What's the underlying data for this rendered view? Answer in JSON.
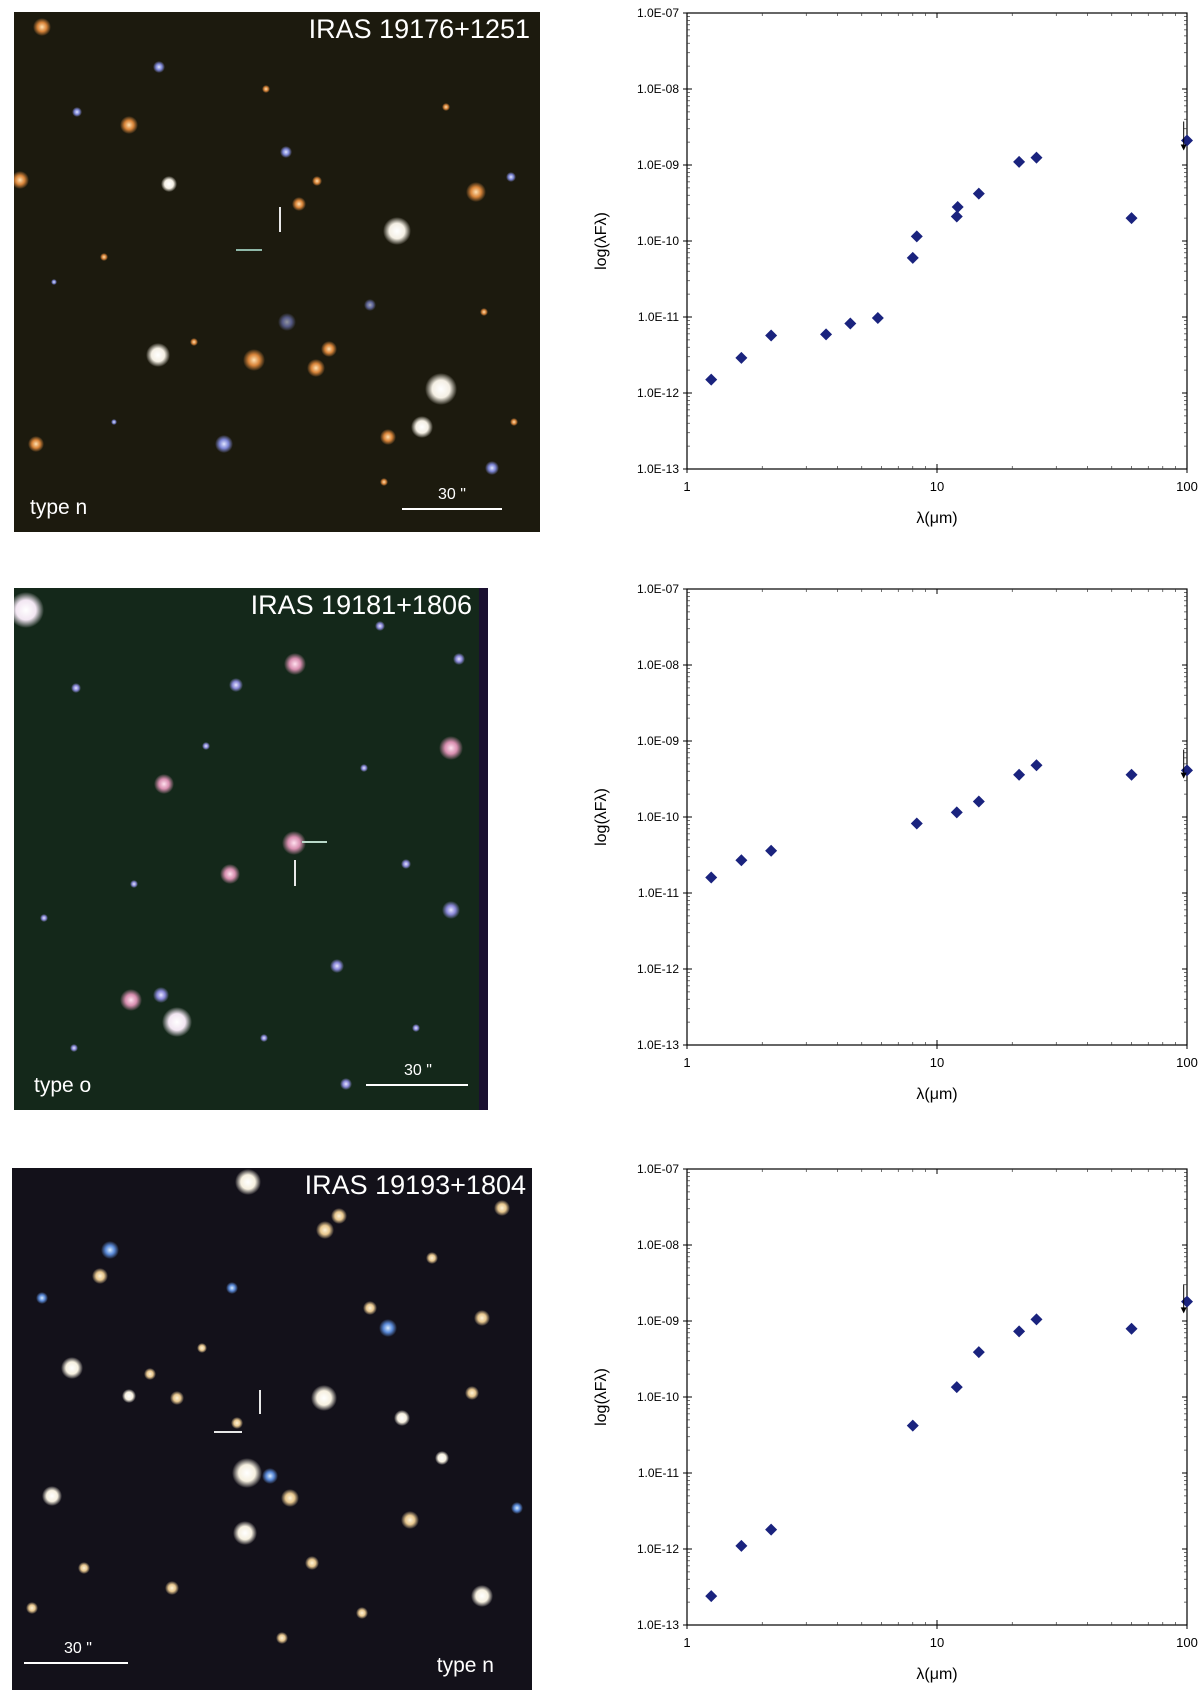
{
  "chart_data": [
    {
      "type": "scatter",
      "object_label": "IRAS 19176+1251",
      "image_type_label": "type n",
      "scale_label": "30 \"",
      "xlabel": "λ(μm)",
      "ylabel": "log(λFλ)",
      "xscale": "log",
      "yscale": "log",
      "xlim": [
        1,
        100
      ],
      "ylim": [
        1e-13,
        1e-07
      ],
      "x_ticks": [
        "1",
        "10",
        "100"
      ],
      "y_ticks": [
        "1.0E-13",
        "1.0E-12",
        "1.0E-11",
        "1.0E-10",
        "1.0E-09",
        "1.0E-08",
        "1.0E-07"
      ],
      "marker_color": "#1a237e",
      "points": [
        {
          "x": 1.25,
          "y": 1.5e-12
        },
        {
          "x": 1.65,
          "y": 2.9e-12
        },
        {
          "x": 2.17,
          "y": 5.7e-12
        },
        {
          "x": 3.6,
          "y": 5.9e-12
        },
        {
          "x": 4.5,
          "y": 8.2e-12
        },
        {
          "x": 5.8,
          "y": 9.7e-12
        },
        {
          "x": 8.0,
          "y": 6e-11
        },
        {
          "x": 8.3,
          "y": 1.15e-10
        },
        {
          "x": 12.0,
          "y": 2.1e-10
        },
        {
          "x": 12.1,
          "y": 2.8e-10
        },
        {
          "x": 14.7,
          "y": 4.2e-10
        },
        {
          "x": 21.3,
          "y": 1.1e-09
        },
        {
          "x": 25.0,
          "y": 1.25e-09
        },
        {
          "x": 60.0,
          "y": 2e-10
        },
        {
          "x": 100.0,
          "y": 2.1e-09
        }
      ],
      "upper_limits": [
        {
          "x": 97.0,
          "y": 1.6e-09
        }
      ]
    },
    {
      "type": "scatter",
      "object_label": "IRAS 19181+1806",
      "image_type_label": "type o",
      "scale_label": "30 \"",
      "xlabel": "λ(μm)",
      "ylabel": "log(λFλ)",
      "xscale": "log",
      "yscale": "log",
      "xlim": [
        1,
        100
      ],
      "ylim": [
        1e-13,
        1e-07
      ],
      "x_ticks": [
        "1",
        "10",
        "100"
      ],
      "y_ticks": [
        "1.0E-13",
        "1.0E-12",
        "1.0E-11",
        "1.0E-10",
        "1.0E-09",
        "1.0E-08",
        "1.0E-07"
      ],
      "marker_color": "#1a237e",
      "points": [
        {
          "x": 1.25,
          "y": 1.6e-11
        },
        {
          "x": 1.65,
          "y": 2.7e-11
        },
        {
          "x": 2.17,
          "y": 3.6e-11
        },
        {
          "x": 8.3,
          "y": 8.2e-11
        },
        {
          "x": 12.0,
          "y": 1.15e-10
        },
        {
          "x": 14.7,
          "y": 1.6e-10
        },
        {
          "x": 21.3,
          "y": 3.6e-10
        },
        {
          "x": 25.0,
          "y": 4.8e-10
        },
        {
          "x": 60.0,
          "y": 3.6e-10
        },
        {
          "x": 100.0,
          "y": 4.1e-10
        }
      ],
      "upper_limits": [
        {
          "x": 97.0,
          "y": 3.3e-10
        }
      ]
    },
    {
      "type": "scatter",
      "object_label": "IRAS 19193+1804",
      "image_type_label": "type n",
      "scale_label": "30 \"",
      "xlabel": "λ(μm)",
      "ylabel": "log(λFλ)",
      "xscale": "log",
      "yscale": "log",
      "xlim": [
        1,
        100
      ],
      "ylim": [
        1e-13,
        1e-07
      ],
      "x_ticks": [
        "1",
        "10",
        "100"
      ],
      "y_ticks": [
        "1.0E-13",
        "1.0E-12",
        "1.0E-11",
        "1.0E-10",
        "1.0E-09",
        "1.0E-08",
        "1.0E-07"
      ],
      "marker_color": "#1a237e",
      "points": [
        {
          "x": 1.25,
          "y": 2.4e-13
        },
        {
          "x": 1.65,
          "y": 1.1e-12
        },
        {
          "x": 2.17,
          "y": 1.8e-12
        },
        {
          "x": 8.0,
          "y": 4.2e-11
        },
        {
          "x": 12.0,
          "y": 1.35e-10
        },
        {
          "x": 14.7,
          "y": 3.9e-10
        },
        {
          "x": 21.3,
          "y": 7.3e-10
        },
        {
          "x": 25.0,
          "y": 1.05e-09
        },
        {
          "x": 60.0,
          "y": 7.9e-10
        },
        {
          "x": 100.0,
          "y": 1.8e-09
        }
      ],
      "upper_limits": [
        {
          "x": 97.0,
          "y": 1.3e-09
        }
      ]
    }
  ]
}
